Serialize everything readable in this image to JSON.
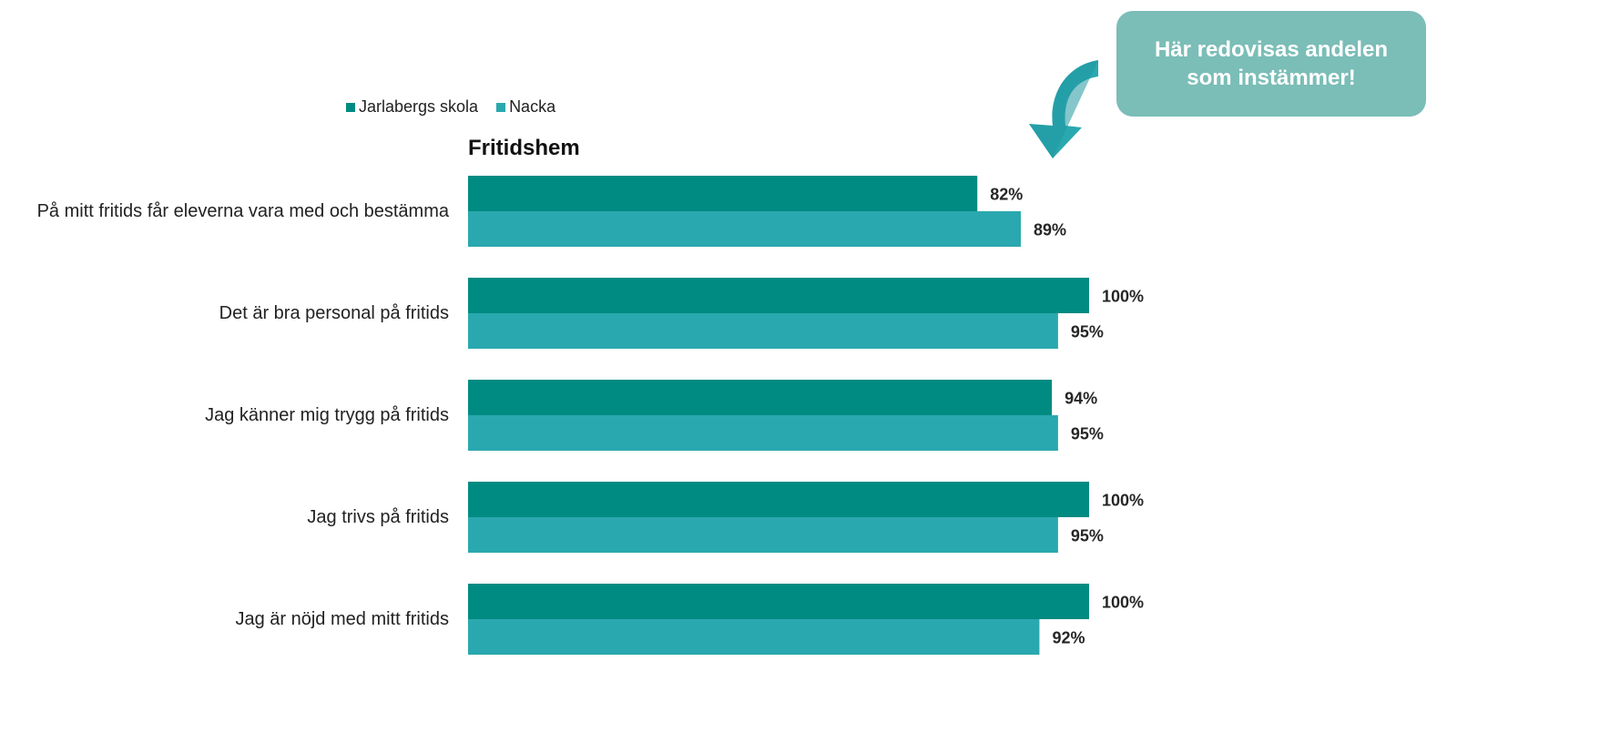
{
  "chart_data": {
    "type": "bar",
    "orientation": "horizontal",
    "title": "Fritidshem",
    "categories": [
      "På mitt fritids får eleverna vara med och bestämma",
      "Det är bra personal på fritids",
      "Jag känner mig trygg på fritids",
      "Jag trivs på fritids",
      "Jag är nöjd med mitt fritids"
    ],
    "series": [
      {
        "name": "Jarlabergs skola",
        "color": "#008b82",
        "values": [
          82,
          100,
          94,
          100,
          100
        ]
      },
      {
        "name": "Nacka",
        "color": "#2aa8af",
        "values": [
          89,
          95,
          95,
          95,
          92
        ]
      }
    ],
    "value_suffix": "%",
    "xlim": [
      0,
      100
    ],
    "grid": false,
    "legend_position": "top-left"
  },
  "callout": {
    "text": "Här redovisas andelen som instämmer!",
    "color": "#7bbdb7",
    "arrow_color": "#2aa8af"
  }
}
